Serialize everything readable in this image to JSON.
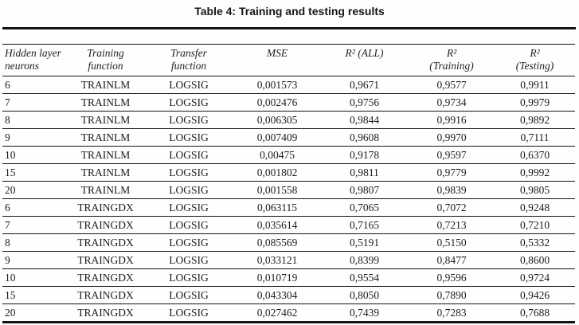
{
  "page": {
    "title": "Table 4: Training and testing results"
  },
  "table": {
    "columns": [
      {
        "line1": "Hidden layer",
        "line2": "neurons"
      },
      {
        "line1": "Training",
        "line2": "function"
      },
      {
        "line1": "Transfer",
        "line2": "function"
      },
      {
        "line1": "MSE",
        "line2": ""
      },
      {
        "line1": "R² (ALL)",
        "line2": ""
      },
      {
        "line1": "R²",
        "line2": "(Training)"
      },
      {
        "line1": "R²",
        "line2": "(Testing)"
      }
    ],
    "rows": [
      [
        "6",
        "TRAINLM",
        "LOGSIG",
        "0,001573",
        "0,9671",
        "0,9577",
        "0,9911"
      ],
      [
        "7",
        "TRAINLM",
        "LOGSIG",
        "0,002476",
        "0,9756",
        "0,9734",
        "0,9979"
      ],
      [
        "8",
        "TRAINLM",
        "LOGSIG",
        "0,006305",
        "0,9844",
        "0,9916",
        "0,9892"
      ],
      [
        "9",
        "TRAINLM",
        "LOGSIG",
        "0,007409",
        "0,9608",
        "0,9970",
        "0,7111"
      ],
      [
        "10",
        "TRAINLM",
        "LOGSIG",
        "0,00475",
        "0,9178",
        "0,9597",
        "0,6370"
      ],
      [
        "15",
        "TRAINLM",
        "LOGSIG",
        "0,001802",
        "0,9811",
        "0,9779",
        "0,9992"
      ],
      [
        "20",
        "TRAINLM",
        "LOGSIG",
        "0,001558",
        "0,9807",
        "0,9839",
        "0,9805"
      ],
      [
        "6",
        "TRAINGDX",
        "LOGSIG",
        "0,063115",
        "0,7065",
        "0,7072",
        "0,9248"
      ],
      [
        "7",
        "TRAINGDX",
        "LOGSIG",
        "0,035614",
        "0,7165",
        "0,7213",
        "0,7210"
      ],
      [
        "8",
        "TRAINGDX",
        "LOGSIG",
        "0,085569",
        "0,5191",
        "0,5150",
        "0,5332"
      ],
      [
        "9",
        "TRAINGDX",
        "LOGSIG",
        "0,033121",
        "0,8399",
        "0,8477",
        "0,8600"
      ],
      [
        "10",
        "TRAINGDX",
        "LOGSIG",
        "0,010719",
        "0,9554",
        "0,9596",
        "0,9724"
      ],
      [
        "15",
        "TRAINGDX",
        "LOGSIG",
        "0,043304",
        "0,8050",
        "0,7890",
        "0,9426"
      ],
      [
        "20",
        "TRAINGDX",
        "LOGSIG",
        "0,027462",
        "0,7439",
        "0,7283",
        "0,7688"
      ]
    ]
  },
  "colors": {
    "background": "#fefefc",
    "text": "#1c1c1c",
    "rule": "#141414"
  }
}
